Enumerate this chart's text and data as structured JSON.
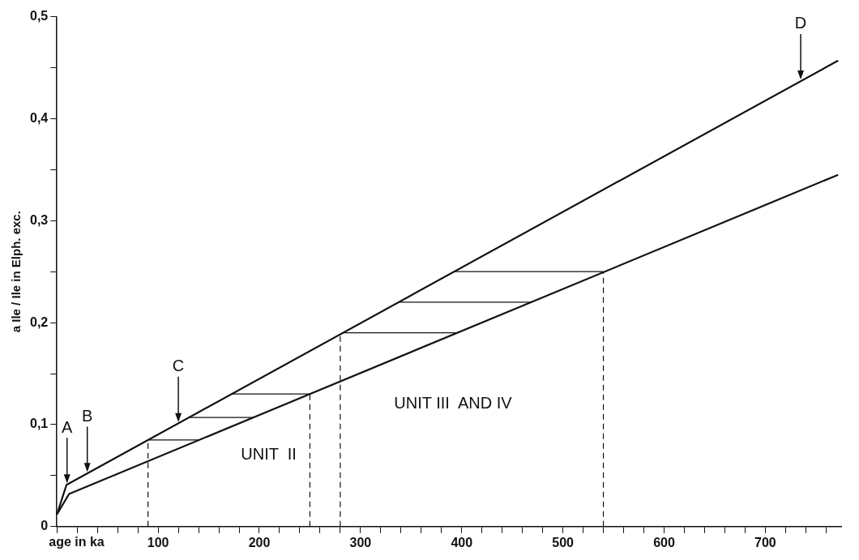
{
  "chart_data": {
    "type": "line",
    "xlabel": "age in ka",
    "ylabel": "a Ile / Ile in Elph. exc.",
    "xlim": [
      0,
      775
    ],
    "ylim": [
      0,
      0.5
    ],
    "xticks": [
      {
        "value": 0,
        "label": null
      },
      {
        "value": 20,
        "label": null
      },
      {
        "value": 40,
        "label": null
      },
      {
        "value": 60,
        "label": null
      },
      {
        "value": 80,
        "label": null
      },
      100,
      {
        "value": 120,
        "label": null
      },
      {
        "value": 140,
        "label": null
      },
      {
        "value": 160,
        "label": null
      },
      {
        "value": 180,
        "label": null
      },
      200,
      {
        "value": 220,
        "label": null
      },
      {
        "value": 240,
        "label": null
      },
      {
        "value": 260,
        "label": null
      },
      {
        "value": 280,
        "label": null
      },
      300,
      {
        "value": 320,
        "label": null
      },
      {
        "value": 340,
        "label": null
      },
      {
        "value": 360,
        "label": null
      },
      {
        "value": 380,
        "label": null
      },
      400,
      {
        "value": 420,
        "label": null
      },
      {
        "value": 440,
        "label": null
      },
      {
        "value": 460,
        "label": null
      },
      {
        "value": 480,
        "label": null
      },
      500,
      {
        "value": 520,
        "label": null
      },
      {
        "value": 540,
        "label": null
      },
      {
        "value": 560,
        "label": null
      },
      {
        "value": 580,
        "label": null
      },
      600,
      {
        "value": 620,
        "label": null
      },
      {
        "value": 640,
        "label": null
      },
      {
        "value": 660,
        "label": null
      },
      {
        "value": 680,
        "label": null
      },
      700,
      {
        "value": 720,
        "label": null
      },
      {
        "value": 740,
        "label": null
      },
      {
        "value": 760,
        "label": null
      }
    ],
    "yticks": [
      0,
      {
        "value": 0.05,
        "label": null
      },
      {
        "value": 0.1,
        "label": "0,1"
      },
      {
        "value": 0.15,
        "label": null
      },
      {
        "value": 0.2,
        "label": "0,2"
      },
      {
        "value": 0.25,
        "label": null
      },
      {
        "value": 0.3,
        "label": "0,3"
      },
      {
        "value": 0.35,
        "label": null
      },
      {
        "value": 0.4,
        "label": "0,4"
      },
      {
        "value": 0.45,
        "label": null
      },
      {
        "value": 0.5,
        "label": "0,5"
      }
    ],
    "grid": false,
    "legend": false,
    "marker": "none",
    "line_style": "solid",
    "series": [
      {
        "color": "#111111",
        "x": [
          0,
          9.5,
          772
        ],
        "values": [
          0.012,
          0.041,
          0.457
        ]
      },
      {
        "color": "#111111",
        "x": [
          0,
          12,
          772
        ],
        "values": [
          0.012,
          0.032,
          0.345
        ]
      },
      {
        "color": "#111111",
        "x": [
          90,
          141
        ],
        "values": [
          0.085,
          0.085
        ]
      },
      {
        "color": "#111111",
        "x": [
          130,
          195
        ],
        "values": [
          0.107,
          0.107
        ]
      },
      {
        "color": "#111111",
        "x": [
          172,
          250
        ],
        "values": [
          0.13,
          0.13
        ]
      },
      {
        "color": "#111111",
        "x": [
          282,
          395
        ],
        "values": [
          0.19,
          0.19
        ]
      },
      {
        "color": "#111111",
        "x": [
          337,
          468
        ],
        "values": [
          0.22,
          0.22
        ]
      },
      {
        "color": "#111111",
        "x": [
          392,
          540
        ],
        "values": [
          0.25,
          0.25
        ]
      },
      {
        "color": "#111111",
        "x": [
          90,
          90
        ],
        "values": [
          0,
          0.085
        ],
        "line_style": "dashed"
      },
      {
        "color": "#111111",
        "x": [
          250,
          250
        ],
        "values": [
          0,
          0.13
        ],
        "line_style": "dashed"
      },
      {
        "color": "#111111",
        "x": [
          280,
          280
        ],
        "values": [
          0,
          0.19
        ],
        "line_style": "dashed"
      },
      {
        "color": "#111111",
        "x": [
          540,
          540
        ],
        "values": [
          0,
          0.25
        ],
        "line_style": "dashed"
      }
    ],
    "annotations": [
      {
        "text": "A",
        "x": 10,
        "y": 0.041
      },
      {
        "text": "B",
        "x": 30,
        "y": 0.052
      },
      {
        "text": "C",
        "x": 120,
        "y": 0.101
      },
      {
        "text": "D",
        "x": 735,
        "y": 0.437
      },
      "UNIT  II",
      "UNIT III  AND IV"
    ]
  }
}
